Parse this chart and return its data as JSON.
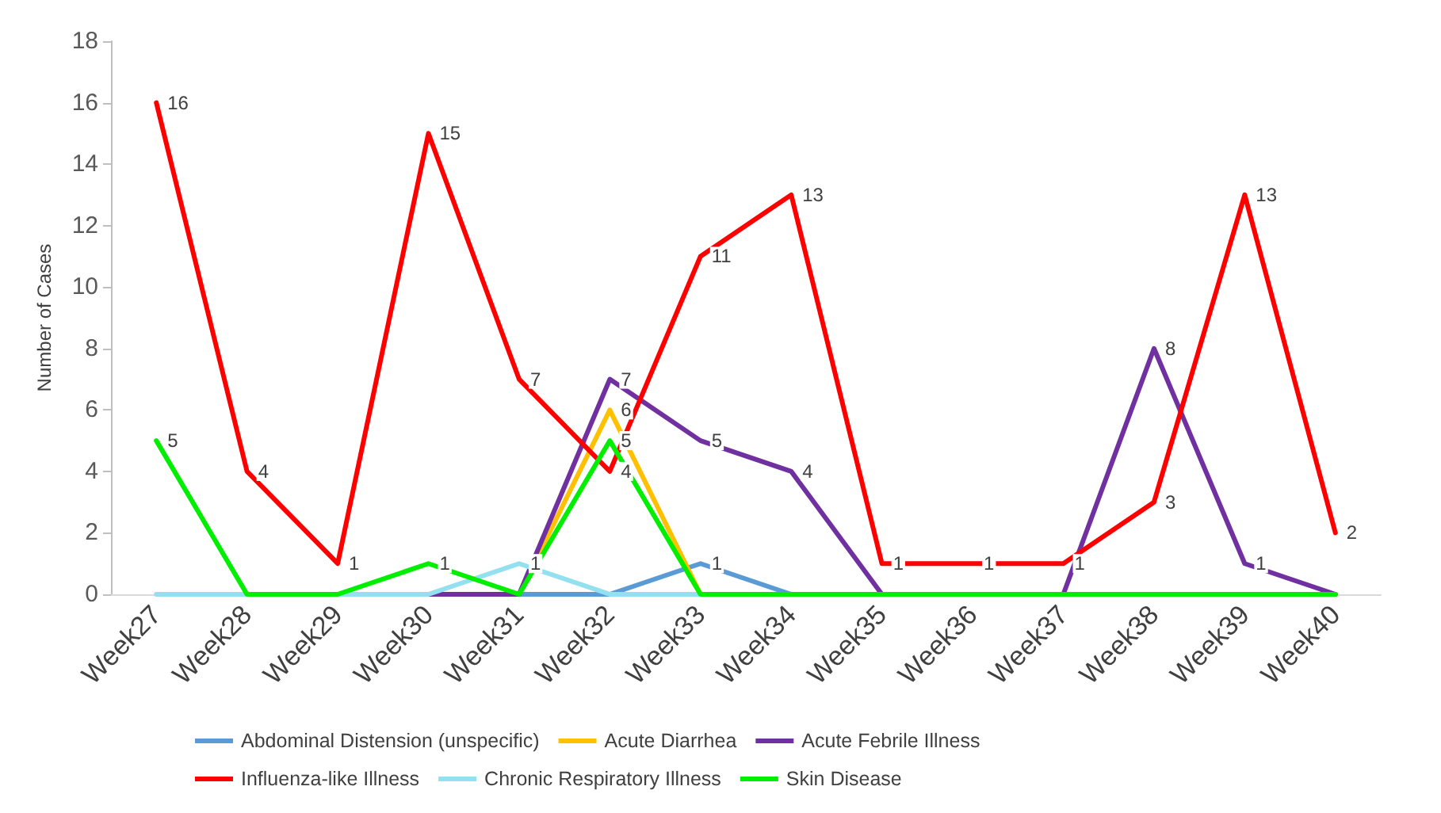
{
  "chart_data": {
    "type": "line",
    "ylabel": "Number of Cases",
    "categories": [
      "Week27",
      "Week28",
      "Week29",
      "Week30",
      "Week31",
      "Week32",
      "Week33",
      "Week34",
      "Week35",
      "Week36",
      "Week37",
      "Week38",
      "Week39",
      "Week40"
    ],
    "ylim": [
      0,
      18
    ],
    "yticks": [
      0,
      2,
      4,
      6,
      8,
      10,
      12,
      14,
      16,
      18
    ],
    "grid": false,
    "legend": "bottom",
    "marker": "none",
    "line_style": "solid",
    "series": [
      {
        "name": "Abdominal Distension (unspecific)",
        "color": "#5b9bd5",
        "values": [
          null,
          null,
          null,
          0,
          0,
          0,
          1,
          0,
          null,
          null,
          null,
          null,
          null,
          null
        ],
        "value_labels": [
          null,
          null,
          null,
          null,
          null,
          null,
          "1",
          null,
          null,
          null,
          null,
          null,
          null,
          null
        ]
      },
      {
        "name": "Acute Diarrhea",
        "color": "#ffc000",
        "values": [
          null,
          null,
          null,
          null,
          0,
          6,
          0,
          null,
          null,
          null,
          null,
          null,
          null,
          null
        ],
        "value_labels": [
          null,
          null,
          null,
          null,
          null,
          "6",
          null,
          null,
          null,
          null,
          null,
          null,
          null,
          null
        ]
      },
      {
        "name": "Acute Febrile Illness",
        "color": "#7030a0",
        "values": [
          null,
          null,
          null,
          0,
          0,
          7,
          5,
          4,
          0,
          0,
          0,
          8,
          1,
          0
        ],
        "value_labels": [
          null,
          null,
          null,
          null,
          null,
          "7",
          "5",
          "4",
          null,
          null,
          null,
          "8",
          "1",
          null
        ]
      },
      {
        "name": "Influenza-like Illness",
        "color": "#ff0000",
        "values": [
          16,
          4,
          1,
          15,
          7,
          4,
          11,
          13,
          1,
          1,
          1,
          3,
          13,
          2
        ],
        "value_labels": [
          "16",
          "4",
          "1",
          "15",
          "7",
          "4",
          "11",
          "13",
          "1",
          "1",
          "1",
          "3",
          "13",
          "2"
        ]
      },
      {
        "name": "Chronic Respiratory Illness",
        "color": "#92e0f0",
        "values": [
          0,
          0,
          0,
          0,
          1,
          0,
          0,
          null,
          null,
          null,
          null,
          null,
          null,
          null
        ],
        "value_labels": [
          null,
          null,
          null,
          null,
          "1",
          null,
          null,
          null,
          null,
          null,
          null,
          null,
          null,
          null
        ]
      },
      {
        "name": "Skin Disease",
        "color": "#00ee00",
        "values": [
          5,
          0,
          0,
          1,
          0,
          5,
          0,
          0,
          0,
          0,
          0,
          0,
          0,
          0
        ],
        "value_labels": [
          "5",
          null,
          null,
          "1",
          null,
          "5",
          null,
          null,
          null,
          null,
          null,
          null,
          null,
          null
        ]
      }
    ]
  }
}
